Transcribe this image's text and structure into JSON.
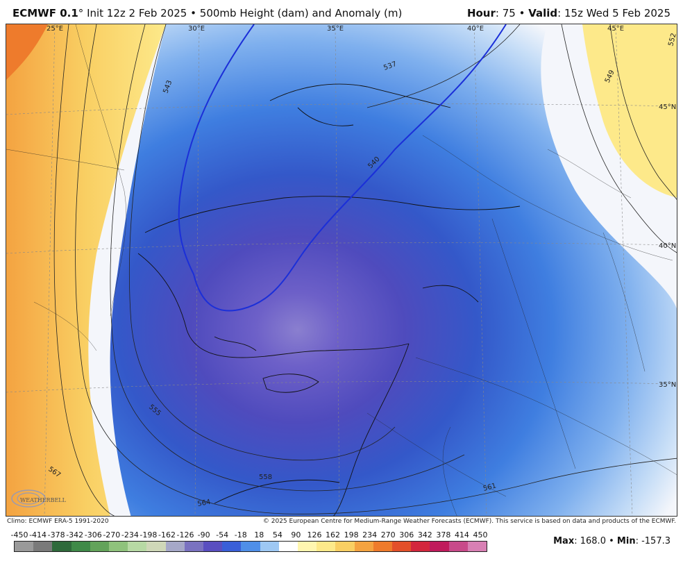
{
  "header": {
    "model": "ECMWF 0.1",
    "degree": "°",
    "init": "Init 12z 2 Feb 2025",
    "sep": "•",
    "product": "500mb Height (dam) and Anomaly (m)",
    "hour_label": "Hour",
    "hour_value": ": 75",
    "valid_label": "Valid",
    "valid_value": ": 15z Wed 5 Feb 2025"
  },
  "map": {
    "lon_labels": [
      "25°E",
      "30°E",
      "35°E",
      "40°E",
      "45°E"
    ],
    "lat_labels": [
      "45°N",
      "40°N",
      "35°N"
    ],
    "contour_labels": [
      "537",
      "540",
      "543",
      "549",
      "552",
      "555",
      "558",
      "561",
      "564",
      "567"
    ],
    "logo_text": "WEATHERBELL",
    "colors": {
      "deep_anomaly": "#5a4fc0",
      "strong_anomaly": "#3a5fd8",
      "moderate_anomaly": "#4f8fe8",
      "weak_anomaly": "#9ec8f3",
      "neutral": "#f4f6fb",
      "warm_anomaly": "#fde98a",
      "strong_warm": "#f4a341"
    }
  },
  "credits": {
    "climo": "Climo: ECMWF ERA-5 1991-2020",
    "copyright": "© 2025 European Centre for Medium-Range Weather Forecasts (ECMWF). This service is based on data and products of the ECMWF."
  },
  "scale": {
    "ticks": [
      "-450",
      "-414",
      "-378",
      "-342",
      "-306",
      "-270",
      "-234",
      "-198",
      "-162",
      "-126",
      "-90",
      "-54",
      "-18",
      "18",
      "54",
      "90",
      "126",
      "162",
      "198",
      "234",
      "270",
      "306",
      "342",
      "378",
      "414",
      "450"
    ],
    "colors": [
      "#9a9a9a",
      "#7a7a7a",
      "#2f6a3b",
      "#3f8a48",
      "#63a35a",
      "#8fc27c",
      "#b7d9a4",
      "#cfd7b8",
      "#a6a8c8",
      "#7a72c0",
      "#5a4fc0",
      "#3a5fd8",
      "#4f8fe8",
      "#9ec8f3",
      "#ffffff",
      "#fff6b0",
      "#fde98a",
      "#f9cf63",
      "#f4a341",
      "#ee7b2c",
      "#e3502a",
      "#d3273d",
      "#c01b5c",
      "#c84a8a",
      "#d880b4"
    ]
  },
  "stats": {
    "max_label": "Max",
    "max_value": ": 168.0",
    "sep": "•",
    "min_label": "Min",
    "min_value": ": -157.3"
  }
}
